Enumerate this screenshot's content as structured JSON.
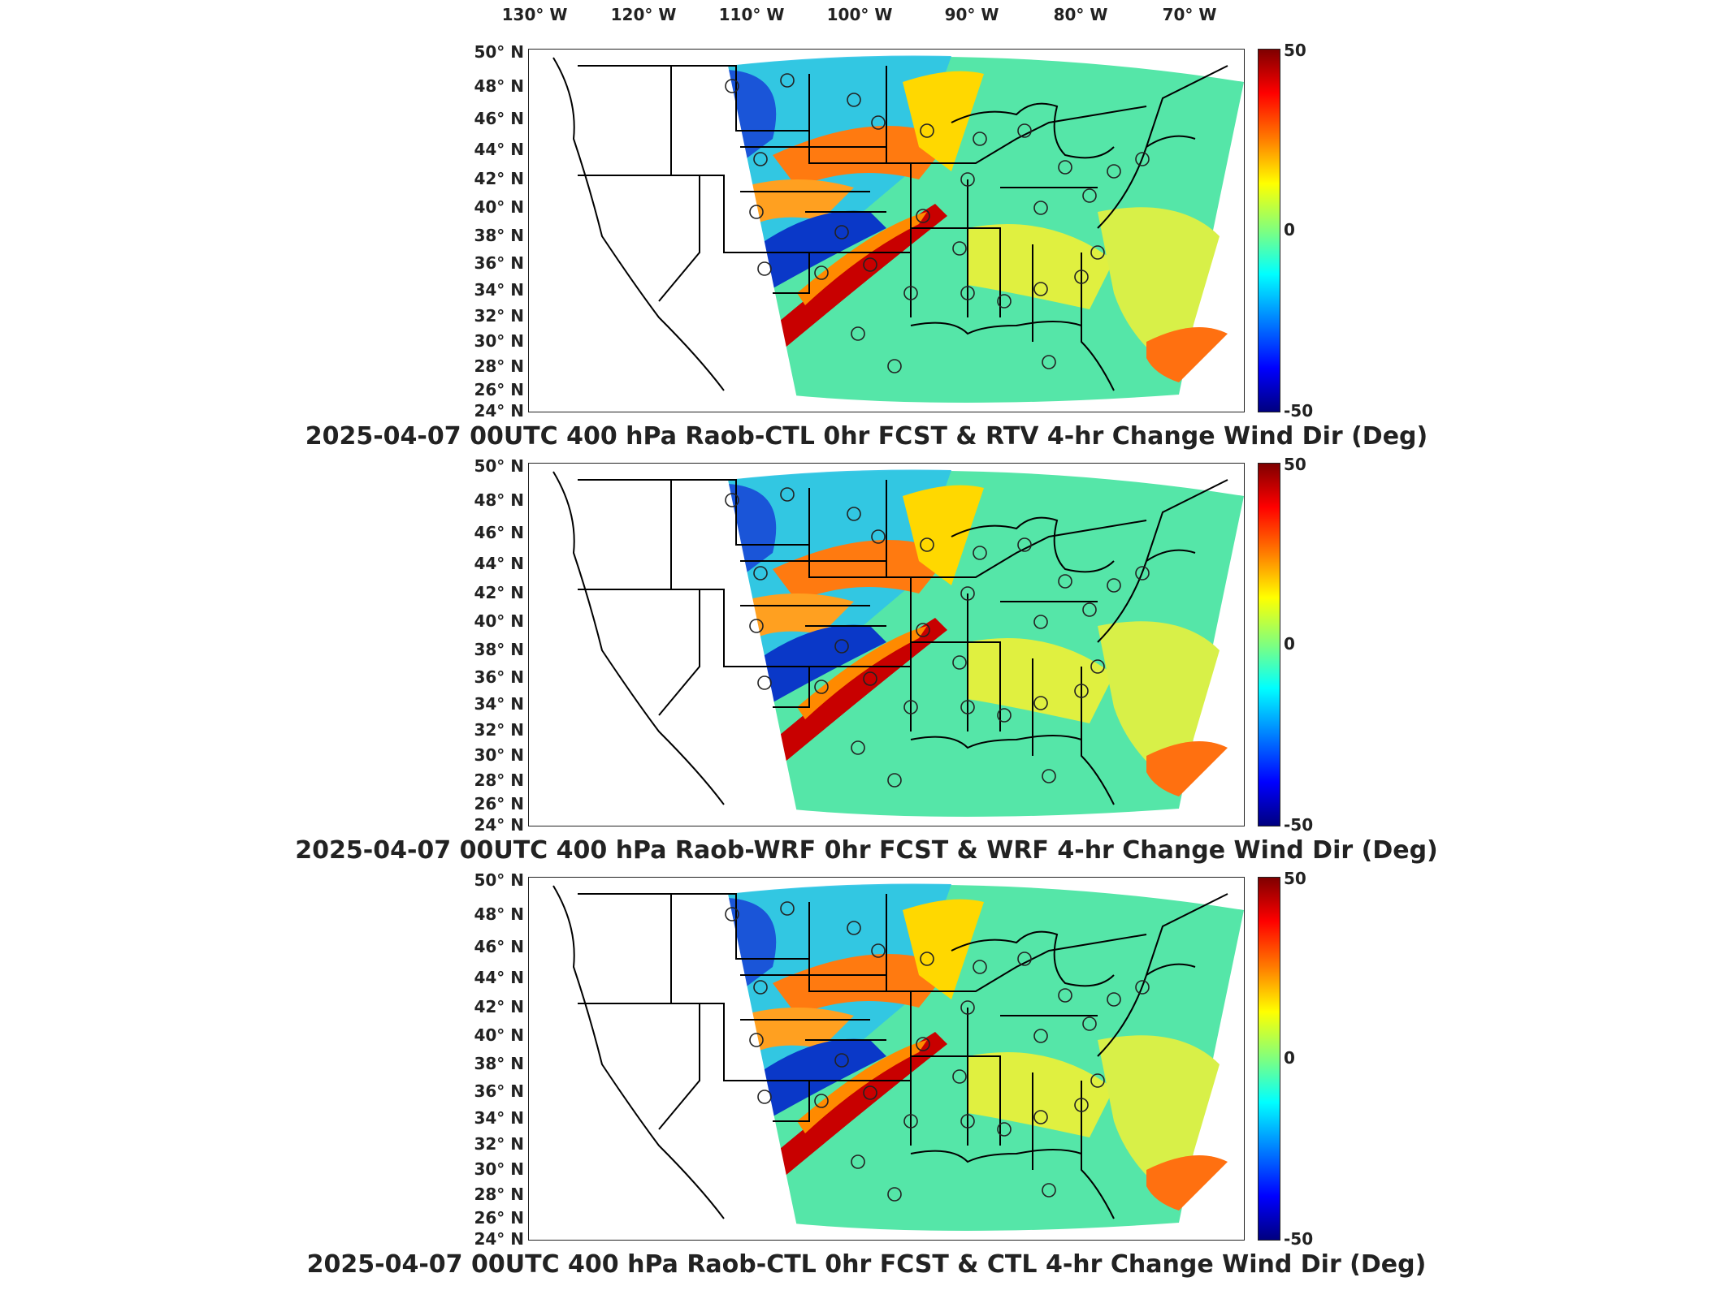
{
  "lon_labels": [
    "130° W",
    "120° W",
    "110° W",
    "100° W",
    "90° W",
    "80° W",
    "70° W"
  ],
  "lat_labels": [
    "50° N",
    "48° N",
    "46° N",
    "44° N",
    "42° N",
    "40° N",
    "38° N",
    "36° N",
    "34° N",
    "32° N",
    "30° N",
    "28° N",
    "26° N",
    "24° N"
  ],
  "colorbar": {
    "max_label": "50",
    "mid_label": "0",
    "min_label": "-50",
    "colormap": [
      "#7f0000",
      "#ff0000",
      "#ff7f00",
      "#ffff00",
      "#7fff7f",
      "#00ffff",
      "#007fff",
      "#0000ff",
      "#00007f"
    ]
  },
  "panels": [
    {
      "title": "2025-04-07 00UTC 400 hPa Raob-CTL 0hr FCST & RTV 4-hr Change Wind Dir (Deg)"
    },
    {
      "title": "2025-04-07 00UTC 400 hPa Raob-WRF 0hr FCST & WRF 4-hr Change Wind Dir (Deg)"
    },
    {
      "title": "2025-04-07 00UTC 400 hPa Raob-CTL 0hr FCST & CTL 4-hr Change Wind Dir (Deg)"
    }
  ]
}
